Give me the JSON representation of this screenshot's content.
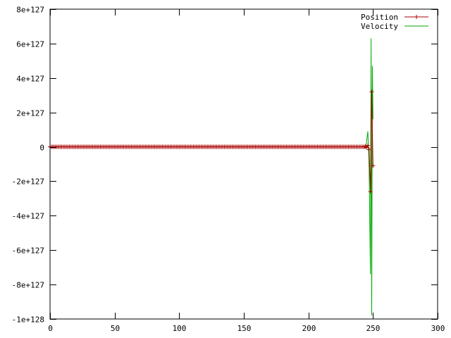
{
  "chart_data": {
    "type": "line",
    "title": "",
    "xlabel": "",
    "ylabel": "",
    "xlim": [
      0,
      300
    ],
    "ylim": [
      -1e+128,
      8e+127
    ],
    "x_ticks": [
      0,
      50,
      100,
      150,
      200,
      250,
      300
    ],
    "x_tick_labels": [
      "0",
      "50",
      "100",
      "150",
      "200",
      "250",
      "300"
    ],
    "y_ticks": [
      8e+127,
      6e+127,
      4e+127,
      2e+127,
      0,
      -2e+127,
      -4e+127,
      -6e+127,
      -8e+127,
      -1e+128
    ],
    "y_tick_labels": [
      "8e+127",
      "6e+127",
      "4e+127",
      "2e+127",
      "0",
      "-2e+127",
      "-4e+127",
      "-6e+127",
      "-8e+127",
      "-1e+128"
    ],
    "grid": false,
    "legend_position": "top-right",
    "series": [
      {
        "name": "Position",
        "color": "#aa0000",
        "marker": "plus",
        "x_range": [
          0,
          250
        ],
        "baseline_y": 0,
        "spike_points": [
          [
            244,
            3e+125
          ],
          [
            245,
            -4e+125
          ],
          [
            246,
            8e+125
          ],
          [
            247,
            -1.5e+126
          ],
          [
            248,
            -2.6e+127
          ],
          [
            249,
            3.2e+127
          ],
          [
            250,
            -1.1e+127
          ]
        ]
      },
      {
        "name": "Velocity",
        "color": "#00aa00",
        "marker": "none",
        "x_range": [
          0,
          250
        ],
        "baseline_y": 0,
        "spike_points": [
          [
            243,
            5e+125
          ],
          [
            244,
            -1e+126
          ],
          [
            245,
            3e+126
          ],
          [
            246,
            9e+126
          ],
          [
            247,
            -1.3e+127
          ],
          [
            248,
            -7.4e+127
          ],
          [
            248.5,
            6.3e+127
          ],
          [
            249,
            -9.8e+127
          ],
          [
            249.5,
            4.7e+127
          ],
          [
            250,
            1.6e+127
          ]
        ]
      }
    ]
  }
}
